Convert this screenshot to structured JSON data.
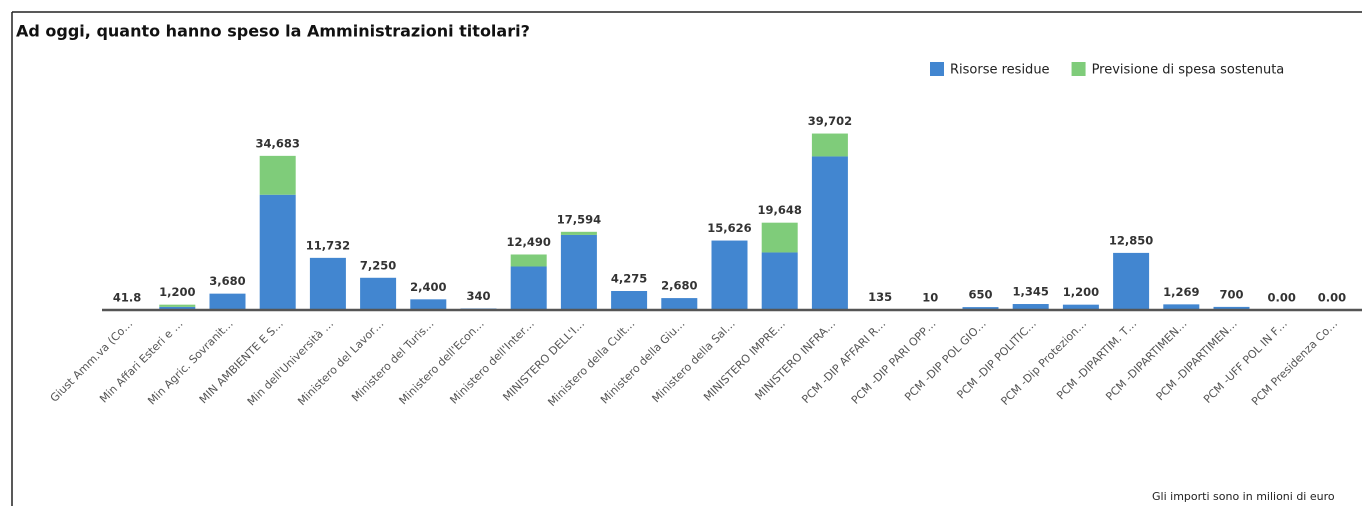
{
  "chart_data": {
    "type": "stacked_bar",
    "title": "Ad oggi, quanto hanno speso la Amministrazioni titolari?",
    "categories": [
      "Giust Amm.va (Co…",
      "Min Affari Esteri e …",
      "Min Agric. Sovranit…",
      "MIN AMBIENTE E S…",
      "Min dell'Università …",
      "Ministero del Lavor…",
      "Ministero del Turis…",
      "Ministero dell'Econ…",
      "Ministero dell'Inter…",
      "MINISTERO DELL'I…",
      "Ministero della Cult…",
      "Ministero della Giu…",
      "Ministero della Sal…",
      "MINISTERO IMPRE…",
      "MINISTERO INFRA…",
      "PCM -DIP AFFARI R…",
      "PCM -DIP PARI OPP…",
      "PCM -DIP POL GIO…",
      "PCM -DIP POLITIC…",
      "PCM -Dip Protezion…",
      "PCM -DIPARTIM. T…",
      "PCM -DIPARTIMEN…",
      "PCM -DIPARTIMEN…",
      "PCM -UFF POL IN F…",
      "PCM Presidenza Co…"
    ],
    "series": [
      {
        "name": "Risorse residue",
        "color": "#4286d0",
        "values": [
          41.8,
          700,
          3680,
          25933,
          11732,
          7250,
          2400,
          340,
          9790,
          16894,
          4275,
          2680,
          15626,
          12948,
          34552,
          135,
          10,
          650,
          1345,
          1200,
          12850,
          1269,
          700,
          0,
          0
        ]
      },
      {
        "name": "Previsione di spesa sostenuta",
        "color": "#7fcc7a",
        "values": [
          0,
          500,
          0,
          8750,
          0,
          0,
          0,
          0,
          2700,
          700,
          0,
          0,
          0,
          6700,
          5150,
          0,
          0,
          0,
          0,
          0,
          0,
          0,
          0,
          0,
          0
        ]
      }
    ],
    "totals": [
      41.8,
      1200,
      3680,
      34683,
      11732,
      7250,
      2400,
      340,
      12490,
      17594,
      4275,
      2680,
      15626,
      19648,
      39702,
      135,
      10,
      650,
      1345,
      1200,
      12850,
      1269,
      700,
      0,
      0
    ],
    "total_labels": [
      "41.8",
      "1,200",
      "3,680",
      "34,683",
      "11,732",
      "7,250",
      "2,400",
      "340",
      "12,490",
      "17,594",
      "4,275",
      "2,680",
      "15,626",
      "19,648",
      "39,702",
      "135",
      "10",
      "650",
      "1,345",
      "1,200",
      "12,850",
      "1,269",
      "700",
      "0.00",
      "0.00"
    ],
    "ylim": [
      0,
      45000
    ],
    "legend": "top-right",
    "note": "Gli importi sono in milioni di euro"
  }
}
